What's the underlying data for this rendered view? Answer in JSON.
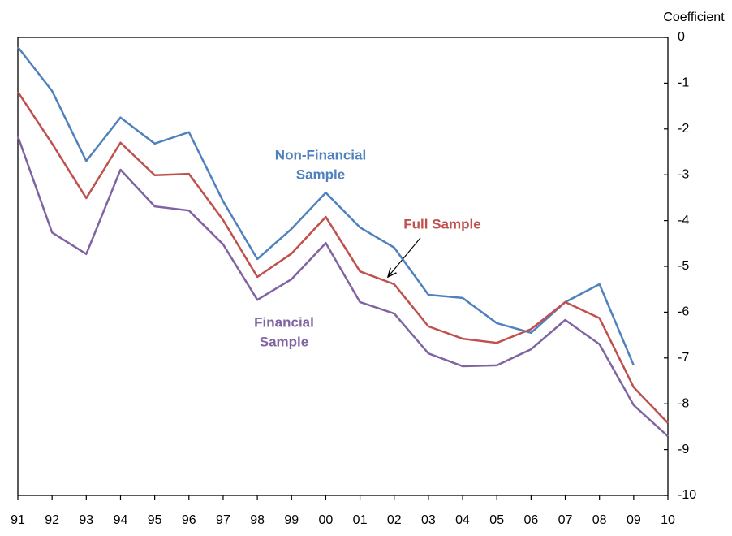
{
  "chart_data": {
    "type": "line",
    "y_label": "Coefficient",
    "categories": [
      "91",
      "92",
      "93",
      "94",
      "95",
      "96",
      "97",
      "98",
      "99",
      "00",
      "01",
      "02",
      "03",
      "04",
      "05",
      "06",
      "07",
      "08",
      "09",
      "10"
    ],
    "series": [
      {
        "name": "Non-Financial Sample",
        "color": "#4f81bd",
        "values": [
          -0.21,
          -1.17,
          -2.7,
          -1.75,
          -2.32,
          -2.07,
          -3.58,
          -4.84,
          -4.18,
          -3.39,
          -4.15,
          -4.59,
          -5.62,
          -5.69,
          -6.24,
          -6.45,
          -5.78,
          -5.39,
          -7.16,
          null
        ]
      },
      {
        "name": "Full Sample",
        "color": "#c0504d",
        "values": [
          -1.19,
          -2.32,
          -3.51,
          -2.3,
          -3.01,
          -2.98,
          -3.99,
          -5.23,
          -4.72,
          -3.92,
          -5.11,
          -5.39,
          -6.31,
          -6.58,
          -6.67,
          -6.37,
          -5.78,
          -6.13,
          -7.64,
          -8.42
        ]
      },
      {
        "name": "Financial Sample",
        "color": "#8064a2",
        "values": [
          -2.16,
          -4.26,
          -4.73,
          -2.89,
          -3.69,
          -3.78,
          -4.52,
          -5.73,
          -5.28,
          -4.49,
          -5.78,
          -6.03,
          -6.9,
          -7.18,
          -7.16,
          -6.81,
          -6.17,
          -6.7,
          -8.03,
          -8.71
        ]
      }
    ],
    "annotations": [
      {
        "lines": [
          "Non-Financial",
          "Sample"
        ],
        "color": "#4f81bd"
      },
      {
        "lines": [
          "Full Sample"
        ],
        "color": "#c0504d"
      },
      {
        "lines": [
          "Financial",
          "Sample"
        ],
        "color": "#8064a2"
      }
    ],
    "ylim": [
      -10,
      0
    ],
    "yticks": [
      0,
      -1,
      -2,
      -3,
      -4,
      -5,
      -6,
      -7,
      -8,
      -9,
      -10
    ],
    "y_axis_side": "right"
  }
}
